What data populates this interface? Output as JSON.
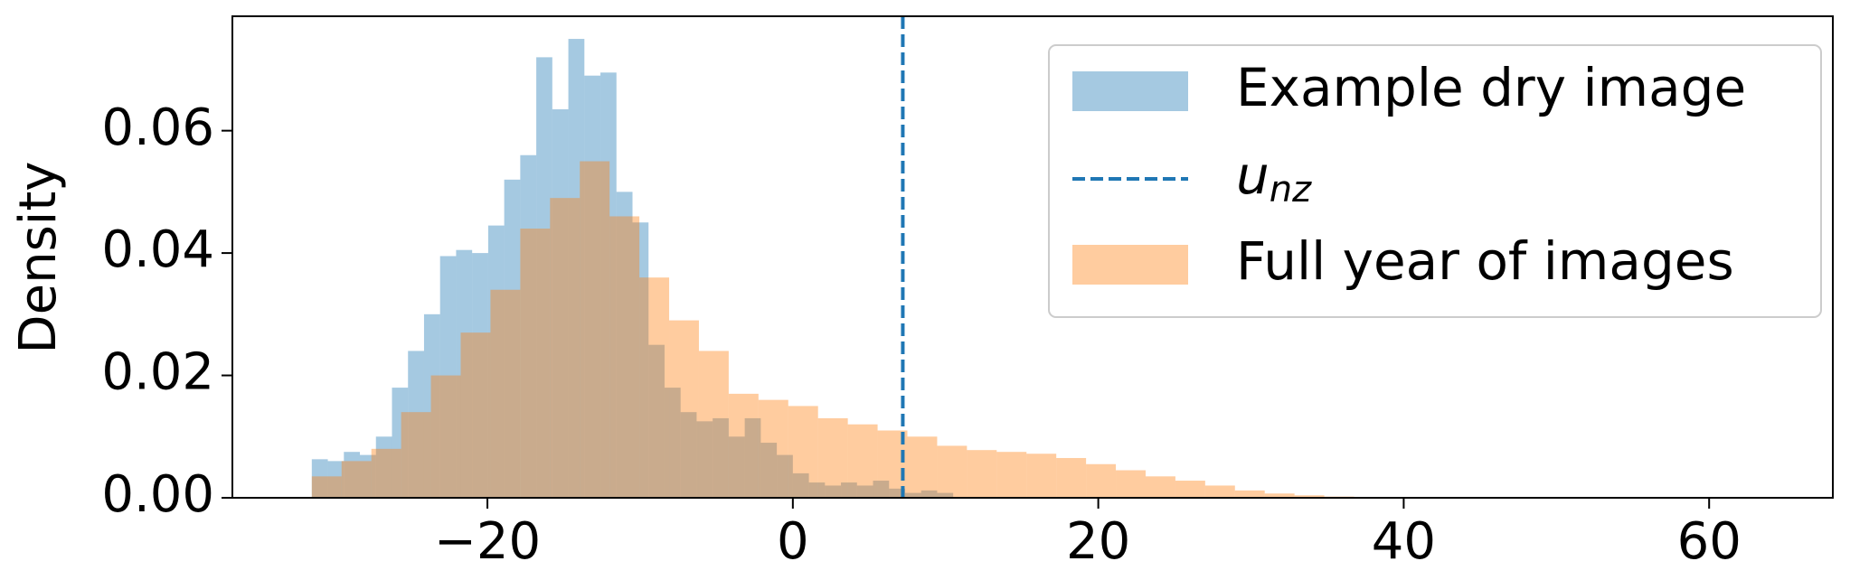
{
  "chart_data": {
    "type": "histogram",
    "ylabel": "Density",
    "xlim": [
      -36.7,
      68.1
    ],
    "ylim": [
      0,
      0.0787
    ],
    "xticks": [
      {
        "value": -20,
        "label": "−20"
      },
      0,
      20,
      40,
      60
    ],
    "yticks": [
      {
        "value": 0,
        "label": "0.00"
      },
      {
        "value": 0.02,
        "label": "0.02"
      },
      {
        "value": 0.04,
        "label": "0.04"
      },
      {
        "value": 0.06,
        "label": "0.06"
      }
    ],
    "legend": "upper right",
    "series": [
      {
        "name": "Example dry image",
        "color": "#1f77b4",
        "alpha": 0.4,
        "bins": [
          -31.5,
          -30.45,
          -29.4,
          -28.35,
          -27.3,
          -26.25,
          -25.2,
          -24.15,
          -23.1,
          -22.05,
          -21,
          -19.95,
          -18.9,
          -17.85,
          -16.8,
          -15.75,
          -14.7,
          -13.65,
          -12.6,
          -11.55,
          -10.5,
          -9.45,
          -8.4,
          -7.35,
          -6.3,
          -5.25,
          -4.2,
          -3.15,
          -2.1,
          -1.05,
          0,
          1.05,
          2.1,
          3.15,
          4.2,
          5.25,
          6.3,
          7.35,
          8.4,
          9.45,
          10.5
        ],
        "values": [
          0.0063,
          0.006,
          0.0075,
          0.007,
          0.01,
          0.018,
          0.024,
          0.03,
          0.0395,
          0.0405,
          0.04,
          0.0445,
          0.052,
          0.056,
          0.072,
          0.0635,
          0.075,
          0.069,
          0.0695,
          0.05,
          0.045,
          0.025,
          0.018,
          0.014,
          0.0125,
          0.013,
          0.01,
          0.013,
          0.009,
          0.007,
          0.004,
          0.0025,
          0.002,
          0.0025,
          0.002,
          0.0028,
          0.0015,
          0.0008,
          0.0012,
          0.0008
        ]
      },
      {
        "name": "Full year of images",
        "color": "#ff7f0e",
        "alpha": 0.4,
        "bins": [
          -31.5,
          -29.55,
          -27.6,
          -25.65,
          -23.7,
          -21.75,
          -19.8,
          -17.85,
          -15.9,
          -13.95,
          -12,
          -10.05,
          -8.1,
          -6.15,
          -4.2,
          -2.25,
          -0.3,
          1.65,
          3.6,
          5.55,
          7.5,
          9.45,
          11.4,
          13.35,
          15.3,
          17.25,
          19.2,
          21.15,
          23.1,
          25.05,
          27,
          28.95,
          30.9,
          32.85,
          34.8,
          36.75
        ],
        "values": [
          0.0035,
          0.006,
          0.008,
          0.014,
          0.02,
          0.027,
          0.034,
          0.044,
          0.049,
          0.055,
          0.046,
          0.036,
          0.029,
          0.024,
          0.017,
          0.016,
          0.015,
          0.013,
          0.012,
          0.011,
          0.01,
          0.0085,
          0.0078,
          0.0075,
          0.0072,
          0.0065,
          0.0055,
          0.0045,
          0.0035,
          0.0028,
          0.002,
          0.0012,
          0.0007,
          0.0004,
          0.0002
        ]
      }
    ],
    "vline": {
      "x": 7.2,
      "name": "u",
      "name_subscript": "nz",
      "color": "#1f77b4",
      "style": "dashed"
    }
  }
}
